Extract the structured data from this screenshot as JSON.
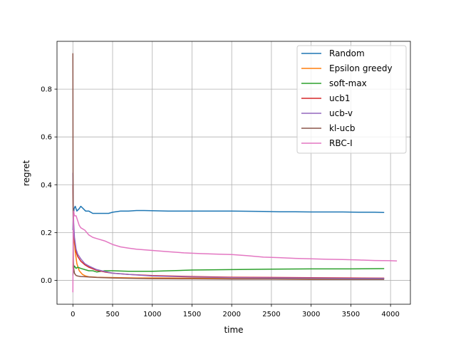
{
  "chart_data": {
    "type": "line",
    "title": "",
    "xlabel": "time",
    "ylabel": "regret",
    "xlim": [
      -200,
      4250
    ],
    "ylim": [
      -0.1,
      1.0
    ],
    "xticks": [
      0,
      500,
      1000,
      1500,
      2000,
      2500,
      3000,
      3500,
      4000
    ],
    "yticks": [
      0.0,
      0.2,
      0.4,
      0.6,
      0.8
    ],
    "xtick_labels": [
      "0",
      "500",
      "1000",
      "1500",
      "2000",
      "2500",
      "3000",
      "3500",
      "4000"
    ],
    "ytick_labels": [
      "0.0",
      "0.2",
      "0.4",
      "0.6",
      "0.8"
    ],
    "grid": true,
    "legend_position": "top-right",
    "series": [
      {
        "name": "Random",
        "color": "#1f77b4",
        "x": [
          0,
          5,
          15,
          30,
          50,
          80,
          100,
          130,
          160,
          200,
          250,
          300,
          350,
          400,
          450,
          500,
          600,
          700,
          800,
          900,
          1000,
          1200,
          1400,
          1600,
          1800,
          2000,
          2200,
          2400,
          2600,
          2800,
          3000,
          3200,
          3400,
          3600,
          3800,
          3920
        ],
        "y": [
          0.21,
          0.26,
          0.3,
          0.31,
          0.29,
          0.3,
          0.31,
          0.3,
          0.29,
          0.29,
          0.28,
          0.28,
          0.28,
          0.28,
          0.28,
          0.285,
          0.29,
          0.29,
          0.292,
          0.292,
          0.291,
          0.29,
          0.29,
          0.29,
          0.29,
          0.29,
          0.289,
          0.288,
          0.287,
          0.287,
          0.286,
          0.286,
          0.286,
          0.285,
          0.285,
          0.284
        ]
      },
      {
        "name": "Epsilon greedy",
        "color": "#ff7f0e",
        "x": [
          0,
          5,
          10,
          20,
          30,
          50,
          80,
          120,
          160,
          200,
          300,
          400,
          600,
          800,
          1000,
          1500,
          2000,
          2500,
          3000,
          3500,
          3920
        ],
        "y": [
          0.05,
          0.14,
          0.18,
          0.16,
          0.12,
          0.07,
          0.04,
          0.025,
          0.018,
          0.015,
          0.013,
          0.012,
          0.011,
          0.01,
          0.01,
          0.009,
          0.009,
          0.008,
          0.008,
          0.008,
          0.008
        ]
      },
      {
        "name": "soft-max",
        "color": "#2ca02c",
        "x": [
          0,
          10,
          20,
          40,
          60,
          100,
          150,
          200,
          250,
          300,
          400,
          500,
          700,
          900,
          1000,
          1500,
          2000,
          2500,
          3000,
          3500,
          3920
        ],
        "y": [
          0.02,
          0.05,
          0.06,
          0.05,
          0.055,
          0.05,
          0.045,
          0.04,
          0.04,
          0.035,
          0.04,
          0.04,
          0.038,
          0.038,
          0.038,
          0.043,
          0.045,
          0.047,
          0.048,
          0.048,
          0.049
        ]
      },
      {
        "name": "ucb1",
        "color": "#d62728",
        "x": [
          0,
          5,
          10,
          20,
          40,
          60,
          100,
          150,
          200,
          300,
          400,
          500,
          700,
          1000,
          1500,
          2000,
          2500,
          3000,
          3500,
          3920
        ],
        "y": [
          0.4,
          0.28,
          0.22,
          0.17,
          0.12,
          0.1,
          0.08,
          0.065,
          0.055,
          0.042,
          0.035,
          0.03,
          0.025,
          0.02,
          0.016,
          0.013,
          0.012,
          0.011,
          0.01,
          0.009
        ]
      },
      {
        "name": "ucb-v",
        "color": "#9467bd",
        "x": [
          0,
          5,
          10,
          20,
          40,
          60,
          100,
          150,
          200,
          300,
          400,
          500,
          700,
          1000,
          1500,
          2000,
          2500,
          3000,
          3500,
          3920
        ],
        "y": [
          0.45,
          0.3,
          0.24,
          0.18,
          0.13,
          0.11,
          0.09,
          0.07,
          0.06,
          0.045,
          0.037,
          0.03,
          0.025,
          0.018,
          0.014,
          0.011,
          0.01,
          0.009,
          0.008,
          0.008
        ]
      },
      {
        "name": "kl-ucb",
        "color": "#8c564b",
        "x": [
          0,
          2,
          4,
          6,
          10,
          20,
          40,
          60,
          100,
          150,
          200,
          300,
          500,
          800,
          1000,
          1500,
          2000,
          2500,
          3000,
          3500,
          3920
        ],
        "y": [
          0.95,
          0.5,
          0.2,
          0.08,
          0.05,
          0.03,
          0.02,
          0.018,
          0.016,
          0.015,
          0.014,
          0.012,
          0.01,
          0.008,
          0.007,
          0.006,
          0.005,
          0.005,
          0.004,
          0.004,
          0.004
        ]
      },
      {
        "name": "RBC-I",
        "color": "#e377c2",
        "x": [
          0,
          5,
          10,
          20,
          40,
          60,
          80,
          100,
          150,
          200,
          250,
          300,
          400,
          500,
          600,
          700,
          800,
          1000,
          1200,
          1400,
          1600,
          1800,
          2000,
          2200,
          2400,
          2600,
          2800,
          3000,
          3200,
          3400,
          3600,
          3800,
          4000,
          4080
        ],
        "y": [
          -0.05,
          0.25,
          0.29,
          0.27,
          0.27,
          0.25,
          0.23,
          0.22,
          0.21,
          0.19,
          0.18,
          0.175,
          0.165,
          0.15,
          0.14,
          0.135,
          0.13,
          0.125,
          0.12,
          0.115,
          0.112,
          0.11,
          0.108,
          0.103,
          0.097,
          0.095,
          0.092,
          0.09,
          0.088,
          0.087,
          0.085,
          0.083,
          0.082,
          0.081
        ]
      }
    ]
  }
}
